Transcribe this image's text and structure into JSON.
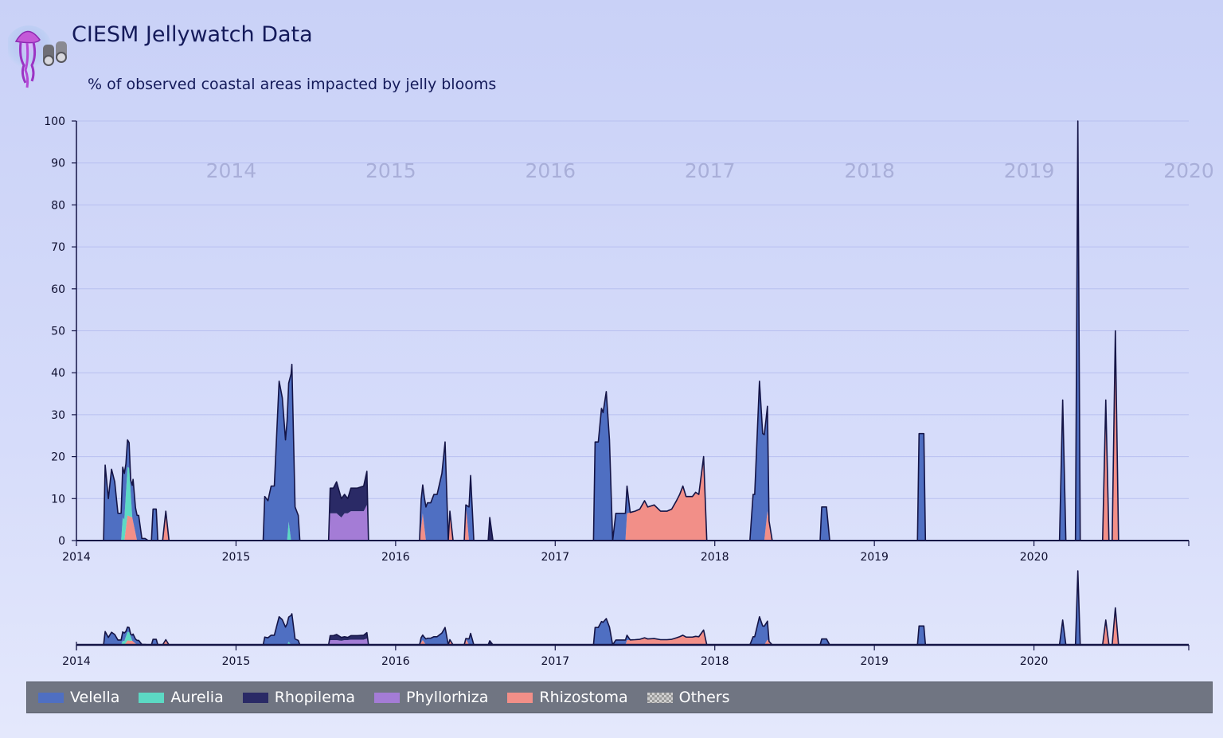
{
  "header": {
    "title": "CIESM Jellywatch Data",
    "logo_icon": "jellyfish-binoculars-logo"
  },
  "colors": {
    "Velella": "#4f6fc2",
    "Aurelia": "#5cd9c4",
    "Rhopilema": "#2a2a66",
    "Phyllorhiza": "#a47cd6",
    "Rhizostoma": "#f28f88",
    "outline": "#141446"
  },
  "legend": {
    "items": [
      {
        "label": "Velella",
        "color": "#4f6fc2"
      },
      {
        "label": "Aurelia",
        "color": "#5cd9c4"
      },
      {
        "label": "Rhopilema",
        "color": "#2a2a66"
      },
      {
        "label": "Phyllorhiza",
        "color": "#a47cd6"
      },
      {
        "label": "Rhizostoma",
        "color": "#f28f88"
      },
      {
        "label": "Others",
        "color": "checker"
      }
    ]
  },
  "chart_data": {
    "type": "area",
    "stacked": true,
    "title": "",
    "subtitle": "% of observed coastal areas impacted by jelly blooms",
    "xlabel": "",
    "ylabel": "",
    "ylim": [
      0,
      100
    ],
    "xlim": [
      2014.0,
      2020.97
    ],
    "y_ticks": [
      0,
      10,
      20,
      30,
      40,
      50,
      60,
      70,
      80,
      90,
      100
    ],
    "x_ticks": [
      "2014",
      "2015",
      "2016",
      "2017",
      "2018",
      "2019",
      "2020"
    ],
    "year_watermarks": [
      "2014",
      "2015",
      "2016",
      "2017",
      "2018",
      "2019",
      "2020"
    ],
    "grid": true,
    "overview_navigator": true,
    "series": [
      {
        "name": "Velella",
        "points": [
          [
            2014.0,
            0
          ],
          [
            2014.17,
            0
          ],
          [
            2014.18,
            18
          ],
          [
            2014.2,
            10
          ],
          [
            2014.22,
            17
          ],
          [
            2014.24,
            14
          ],
          [
            2014.26,
            6.5
          ],
          [
            2014.28,
            6.5
          ],
          [
            2014.29,
            12
          ],
          [
            2014.3,
            11
          ],
          [
            2014.31,
            7
          ],
          [
            2014.33,
            6
          ],
          [
            2014.34,
            3
          ],
          [
            2014.355,
            10
          ],
          [
            2014.37,
            6
          ],
          [
            2014.39,
            6
          ],
          [
            2014.41,
            0.5
          ],
          [
            2014.43,
            0.5
          ],
          [
            2014.45,
            0
          ],
          [
            2014.47,
            0
          ],
          [
            2014.48,
            7.5
          ],
          [
            2014.5,
            7.5
          ],
          [
            2014.51,
            0
          ],
          [
            2015.17,
            0
          ],
          [
            2015.18,
            10.5
          ],
          [
            2015.2,
            9.5
          ],
          [
            2015.22,
            13
          ],
          [
            2015.24,
            13
          ],
          [
            2015.27,
            38
          ],
          [
            2015.29,
            34
          ],
          [
            2015.31,
            24
          ],
          [
            2015.35,
            42
          ],
          [
            2015.37,
            8
          ],
          [
            2015.39,
            6
          ],
          [
            2015.4,
            0
          ],
          [
            2016.15,
            0
          ],
          [
            2016.16,
            6.5
          ],
          [
            2016.18,
            7
          ],
          [
            2016.2,
            9
          ],
          [
            2016.22,
            9
          ],
          [
            2016.24,
            11
          ],
          [
            2016.26,
            11
          ],
          [
            2016.29,
            16
          ],
          [
            2016.31,
            23.5
          ],
          [
            2016.33,
            0
          ],
          [
            2016.43,
            0
          ],
          [
            2016.44,
            0
          ],
          [
            2016.46,
            8
          ],
          [
            2016.47,
            15.5
          ],
          [
            2016.49,
            0
          ],
          [
            2017.24,
            0
          ],
          [
            2017.25,
            23.5
          ],
          [
            2017.27,
            23.5
          ],
          [
            2017.29,
            31.5
          ],
          [
            2017.3,
            30.5
          ],
          [
            2017.32,
            35.5
          ],
          [
            2017.34,
            24
          ],
          [
            2017.36,
            0
          ],
          [
            2017.38,
            6.5
          ],
          [
            2017.45,
            6.5
          ],
          [
            2017.47,
            0
          ],
          [
            2018.22,
            0
          ],
          [
            2018.24,
            11
          ],
          [
            2018.25,
            11
          ],
          [
            2018.28,
            38
          ],
          [
            2018.3,
            25.5
          ],
          [
            2018.32,
            25
          ],
          [
            2018.33,
            25
          ],
          [
            2018.34,
            0
          ],
          [
            2018.66,
            0
          ],
          [
            2018.67,
            8
          ],
          [
            2018.7,
            8
          ],
          [
            2018.72,
            0
          ],
          [
            2019.27,
            0
          ],
          [
            2019.28,
            25.5
          ],
          [
            2019.31,
            25.5
          ],
          [
            2019.32,
            0
          ],
          [
            2020.16,
            0
          ],
          [
            2020.18,
            33.5
          ],
          [
            2020.2,
            0
          ],
          [
            2020.26,
            0
          ],
          [
            2020.275,
            100
          ],
          [
            2020.29,
            0
          ],
          [
            2020.96,
            0
          ]
        ]
      },
      {
        "name": "Aurelia",
        "points": [
          [
            2014.0,
            0
          ],
          [
            2014.28,
            0
          ],
          [
            2014.29,
            5.5
          ],
          [
            2014.3,
            5
          ],
          [
            2014.32,
            11.5
          ],
          [
            2014.33,
            11.5
          ],
          [
            2014.35,
            0
          ],
          [
            2015.32,
            0
          ],
          [
            2015.33,
            4.5
          ],
          [
            2015.345,
            0
          ],
          [
            2020.96,
            0
          ]
        ]
      },
      {
        "name": "Rhopilema",
        "points": [
          [
            2014.0,
            0
          ],
          [
            2015.58,
            0
          ],
          [
            2015.59,
            6
          ],
          [
            2015.61,
            6
          ],
          [
            2015.63,
            7.5
          ],
          [
            2015.66,
            4.5
          ],
          [
            2015.68,
            4.5
          ],
          [
            2015.7,
            3.5
          ],
          [
            2015.72,
            5.5
          ],
          [
            2015.76,
            5.5
          ],
          [
            2015.8,
            6
          ],
          [
            2015.82,
            8
          ],
          [
            2015.83,
            0
          ],
          [
            2016.58,
            0
          ],
          [
            2016.59,
            5.5
          ],
          [
            2016.61,
            0
          ],
          [
            2020.96,
            0
          ]
        ]
      },
      {
        "name": "Phyllorhiza",
        "points": [
          [
            2014.0,
            0
          ],
          [
            2015.58,
            0
          ],
          [
            2015.59,
            6.5
          ],
          [
            2015.61,
            6.5
          ],
          [
            2015.63,
            6.5
          ],
          [
            2015.66,
            5.5
          ],
          [
            2015.68,
            6.5
          ],
          [
            2015.7,
            6.5
          ],
          [
            2015.72,
            7
          ],
          [
            2015.76,
            7
          ],
          [
            2015.8,
            7
          ],
          [
            2015.82,
            8.5
          ],
          [
            2015.83,
            0
          ],
          [
            2020.96,
            0
          ]
        ]
      },
      {
        "name": "Rhizostoma",
        "points": [
          [
            2014.0,
            0
          ],
          [
            2014.3,
            0
          ],
          [
            2014.32,
            6
          ],
          [
            2014.35,
            5.5
          ],
          [
            2014.38,
            0
          ],
          [
            2014.54,
            0
          ],
          [
            2014.56,
            7
          ],
          [
            2014.58,
            0
          ],
          [
            2016.15,
            0
          ],
          [
            2016.17,
            6.5
          ],
          [
            2016.19,
            0
          ],
          [
            2016.33,
            0
          ],
          [
            2016.34,
            7
          ],
          [
            2016.36,
            0
          ],
          [
            2016.43,
            0
          ],
          [
            2016.44,
            8.5
          ],
          [
            2016.46,
            0
          ],
          [
            2017.44,
            0
          ],
          [
            2017.45,
            6.5
          ],
          [
            2017.5,
            7
          ],
          [
            2017.53,
            7.5
          ],
          [
            2017.56,
            9.5
          ],
          [
            2017.58,
            8
          ],
          [
            2017.62,
            8.5
          ],
          [
            2017.66,
            7
          ],
          [
            2017.7,
            7
          ],
          [
            2017.73,
            7.5
          ],
          [
            2017.76,
            9.5
          ],
          [
            2017.78,
            11
          ],
          [
            2017.8,
            13
          ],
          [
            2017.82,
            10.5
          ],
          [
            2017.86,
            10.5
          ],
          [
            2017.88,
            11.5
          ],
          [
            2017.9,
            11
          ],
          [
            2017.93,
            20
          ],
          [
            2017.95,
            0
          ],
          [
            2018.31,
            0
          ],
          [
            2018.33,
            7
          ],
          [
            2018.36,
            0
          ],
          [
            2020.43,
            0
          ],
          [
            2020.45,
            33.5
          ],
          [
            2020.47,
            0
          ],
          [
            2020.49,
            0
          ],
          [
            2020.51,
            50
          ],
          [
            2020.53,
            0
          ],
          [
            2020.96,
            0
          ]
        ]
      }
    ]
  }
}
